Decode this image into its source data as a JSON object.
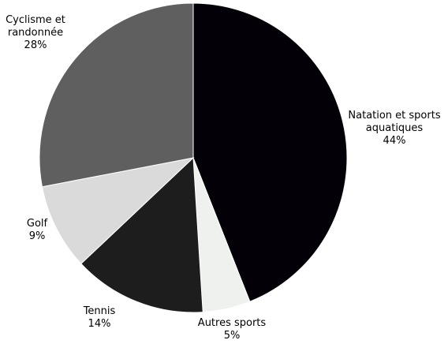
{
  "chart_data": {
    "type": "pie",
    "title": "",
    "slices": [
      {
        "label": "Natation et sports aquatiques",
        "value": 44,
        "percent_label": "44%",
        "color": "#030008"
      },
      {
        "label": "Autres sports",
        "value": 5,
        "percent_label": "5%",
        "color": "#eef1ee"
      },
      {
        "label": "Tennis",
        "value": 14,
        "percent_label": "14%",
        "color": "#1d1d1d"
      },
      {
        "label": "Golf",
        "value": 9,
        "percent_label": "9%",
        "color": "#dadada"
      },
      {
        "label": "Cyclisme et randonnée",
        "value": 28,
        "percent_label": "28%",
        "color": "#5f5f5f"
      }
    ],
    "start_angle": "12 o'clock",
    "direction": "clockwise",
    "legend": "none"
  }
}
